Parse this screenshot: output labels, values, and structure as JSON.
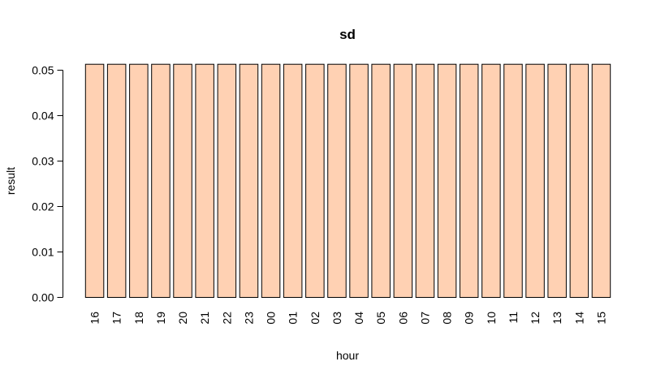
{
  "chart_data": {
    "type": "bar",
    "title": "sd",
    "xlabel": "hour",
    "ylabel": "result",
    "categories": [
      "16",
      "17",
      "18",
      "19",
      "20",
      "21",
      "22",
      "23",
      "00",
      "01",
      "02",
      "03",
      "04",
      "05",
      "06",
      "07",
      "08",
      "09",
      "10",
      "11",
      "12",
      "13",
      "14",
      "15"
    ],
    "values": [
      0.0513,
      0.0513,
      0.0513,
      0.0513,
      0.0513,
      0.0513,
      0.0513,
      0.0513,
      0.0513,
      0.0513,
      0.0513,
      0.0513,
      0.0513,
      0.0513,
      0.0513,
      0.0513,
      0.0513,
      0.0513,
      0.0513,
      0.0513,
      0.0513,
      0.0513,
      0.0513,
      0.0513
    ],
    "ylim": [
      0,
      0.05
    ],
    "yticks": [
      "0.00",
      "0.01",
      "0.02",
      "0.03",
      "0.04",
      "0.05"
    ],
    "grid": false,
    "bar_color": "#FFD1B3",
    "bar_border_color": "#000000"
  }
}
